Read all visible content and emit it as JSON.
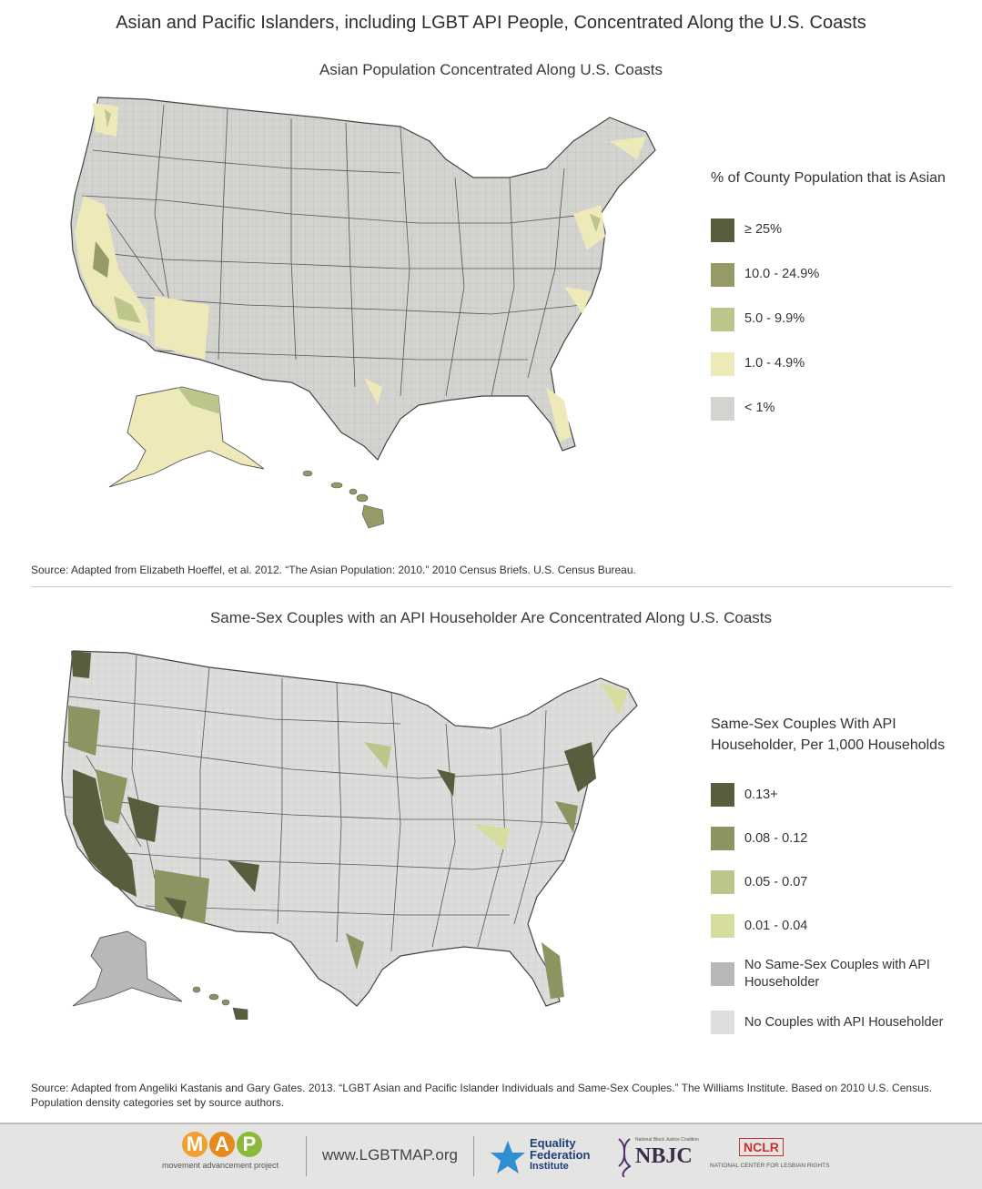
{
  "title": "Asian and Pacific Islanders, including LGBT API People, Concentrated Along the U.S. Coasts",
  "map1": {
    "title": "Asian Population Concentrated Along U.S. Coasts",
    "legend_title": "% of County Population that is Asian",
    "legend": [
      {
        "label": "≥ 25%",
        "color": "#575e3d"
      },
      {
        "label": "10.0 - 24.9%",
        "color": "#959a67"
      },
      {
        "label": "5.0 - 9.9%",
        "color": "#bcc58c"
      },
      {
        "label": "1.0 - 4.9%",
        "color": "#ede9b8"
      },
      {
        "label": "< 1%",
        "color": "#d3d3d0"
      }
    ],
    "source": "Source: Adapted from Elizabeth Hoeffel, et al. 2012. “The Asian Population: 2010.” 2010 Census Briefs. U.S. Census Bureau."
  },
  "map2": {
    "title": "Same-Sex Couples with an API Householder Are Concentrated Along U.S. Coasts",
    "legend_title": "Same-Sex Couples With API Householder, Per 1,000 Households",
    "legend": [
      {
        "label": "0.13+",
        "color": "#575e3d"
      },
      {
        "label": "0.08 - 0.12",
        "color": "#8d9462"
      },
      {
        "label": "0.05 - 0.07",
        "color": "#bcc58c"
      },
      {
        "label": "0.01 - 0.04",
        "color": "#d7dd9e"
      },
      {
        "label": "No Same-Sex Couples with API Householder",
        "color": "#b8b8b8"
      },
      {
        "label": "No Couples with API Householder",
        "color": "#dddddb"
      }
    ],
    "source": "Source: Adapted from Angeliki Kastanis and Gary Gates. 2013. “LGBT Asian and Pacific Islander Individuals and Same-Sex Couples.” The Williams Institute. Based on 2010 U.S. Census. Population density categories set by source authors."
  },
  "footer": {
    "map_letters": [
      "M",
      "A",
      "P"
    ],
    "map_tagline": "movement advancement project",
    "url": "www.LGBTMAP.org",
    "efi_lines": [
      "Equality",
      "Federation",
      "Institute"
    ],
    "nbjc_label": "NBJC",
    "nbjc_small": "National Black Justice Coalition",
    "nclr_label": "NCLR",
    "nclr_sub": "NATIONAL CENTER FOR LESBIAN RIGHTS"
  }
}
